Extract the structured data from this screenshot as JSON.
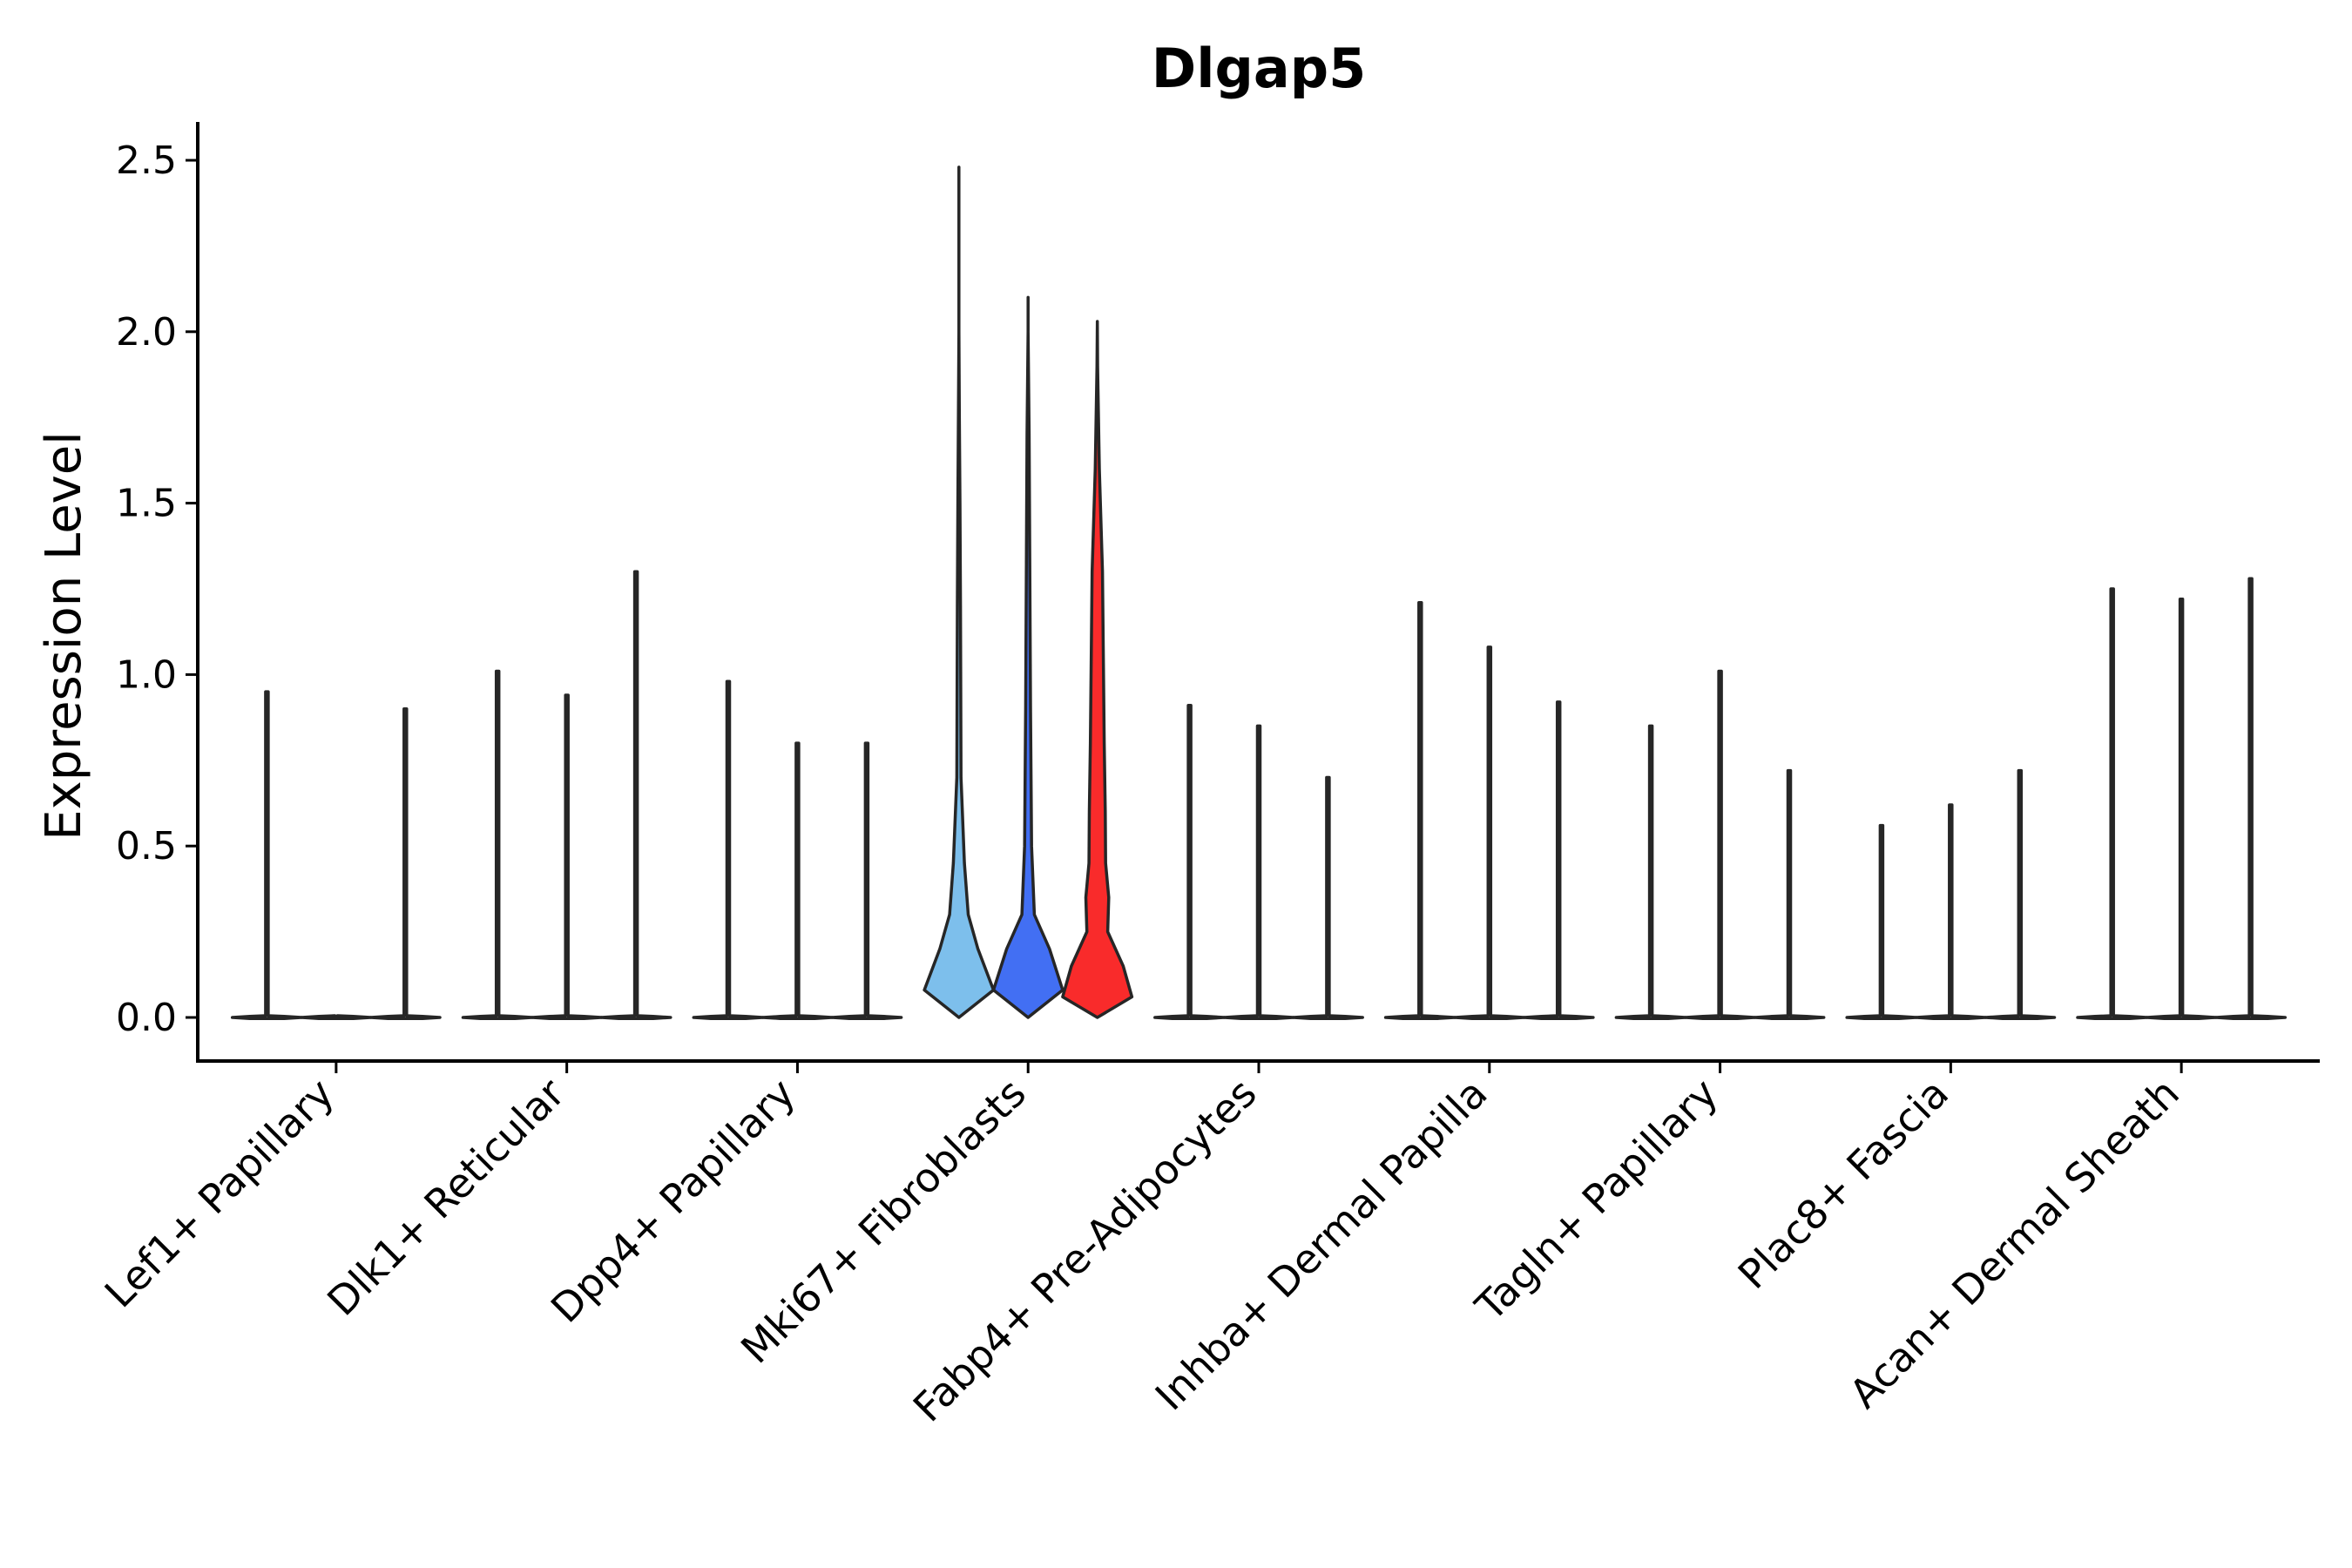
{
  "chart_data": {
    "type": "violin",
    "title": "Dlgap5",
    "xlabel": "",
    "ylabel": "Expression Level",
    "ylim": [
      -0.12,
      2.6
    ],
    "yticks": [
      0.0,
      0.5,
      1.0,
      1.5,
      2.0,
      2.5
    ],
    "ytick_labels": [
      "0.0",
      "0.5",
      "1.0",
      "1.5",
      "2.0",
      "2.5"
    ],
    "grid": false,
    "legend": "none",
    "groups_per_category": 3,
    "categories": [
      "Lef1+ Papillary",
      "Dlk1+ Reticular",
      "Dpp4+ Papillary",
      "Mki67+ Fibroblasts",
      "Fabp4+ Pre-Adipocytes",
      "Inhba+ Dermal Papilla",
      "Tagln+ Papillary",
      "Plac8+ Fascia",
      "Acan+ Dermal Sheath"
    ],
    "max_values": [
      [
        0.95,
        0.0,
        0.9
      ],
      [
        1.01,
        0.94,
        1.3
      ],
      [
        0.98,
        0.8,
        0.8
      ],
      [
        2.48,
        2.1,
        2.03
      ],
      [
        0.91,
        0.85,
        0.7
      ],
      [
        1.21,
        1.08,
        0.92
      ],
      [
        0.85,
        1.01,
        0.72
      ],
      [
        0.56,
        0.62,
        0.72
      ],
      [
        1.25,
        1.22,
        1.28
      ]
    ],
    "expressing_groups": [
      {
        "category": "Mki67+ Fibroblasts",
        "name": "group-1",
        "color": "#7dbfec",
        "max": 2.48,
        "profile": [
          [
            0,
            0.0
          ],
          [
            0.08,
            1.0
          ],
          [
            0.2,
            0.55
          ],
          [
            0.3,
            0.27
          ],
          [
            0.45,
            0.16
          ],
          [
            0.7,
            0.06
          ],
          [
            1.2,
            0.045
          ],
          [
            1.5,
            0.03
          ],
          [
            1.75,
            0.014
          ],
          [
            2.0,
            0.0
          ],
          [
            2.48,
            0.0
          ]
        ]
      },
      {
        "category": "Mki67+ Fibroblasts",
        "name": "group-2",
        "color": "#426ff3",
        "max": 2.1,
        "profile": [
          [
            0,
            0.0
          ],
          [
            0.08,
            1.0
          ],
          [
            0.2,
            0.62
          ],
          [
            0.3,
            0.18
          ],
          [
            0.5,
            0.1
          ],
          [
            0.9,
            0.07
          ],
          [
            1.3,
            0.05
          ],
          [
            1.7,
            0.03
          ],
          [
            2.0,
            0.0
          ],
          [
            2.1,
            0.0
          ]
        ]
      },
      {
        "category": "Mki67+ Fibroblasts",
        "name": "group-3",
        "color": "#f92b2b",
        "max": 2.03,
        "profile": [
          [
            0,
            0.0
          ],
          [
            0.06,
            1.0
          ],
          [
            0.15,
            0.75
          ],
          [
            0.25,
            0.3
          ],
          [
            0.35,
            0.33
          ],
          [
            0.45,
            0.24
          ],
          [
            0.6,
            0.23
          ],
          [
            0.8,
            0.2
          ],
          [
            1.0,
            0.18
          ],
          [
            1.3,
            0.15
          ],
          [
            1.6,
            0.06
          ],
          [
            1.9,
            0.01
          ],
          [
            2.03,
            0.0
          ]
        ]
      }
    ]
  }
}
